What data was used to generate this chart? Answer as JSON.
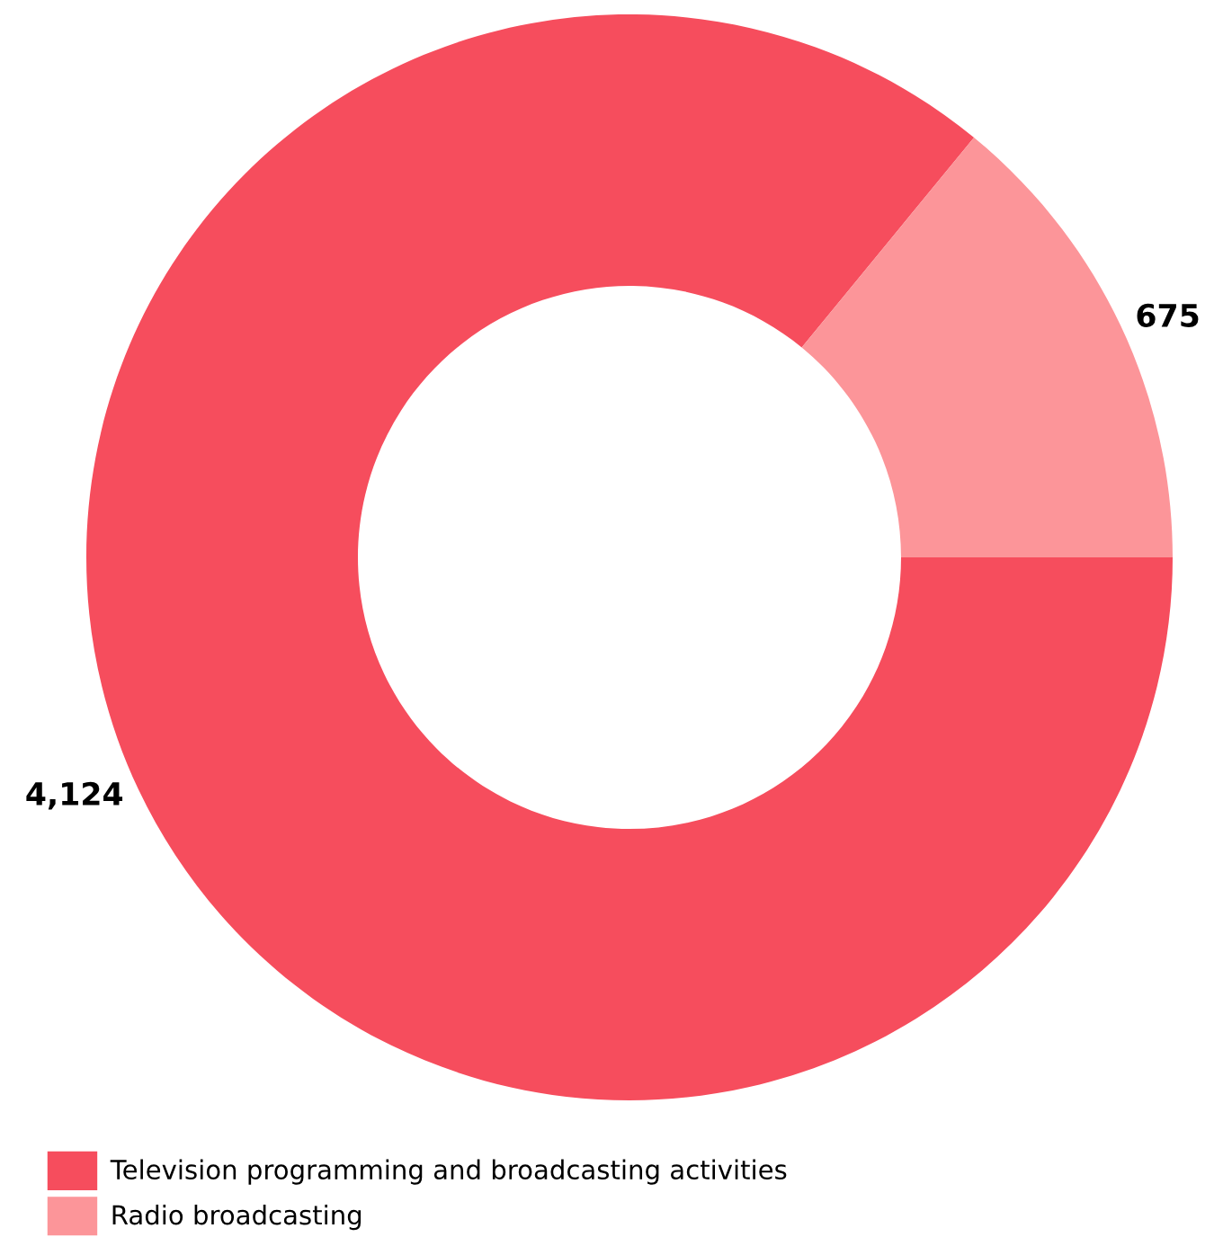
{
  "chart_data": {
    "type": "donut",
    "categories": [
      "Television programming and broadcasting activities",
      "Radio broadcasting"
    ],
    "values": [
      4124,
      675
    ],
    "colors": [
      "#f64d5d",
      "#fc9599"
    ],
    "value_labels": [
      "4,124",
      "675"
    ],
    "legend": "bottom left"
  }
}
